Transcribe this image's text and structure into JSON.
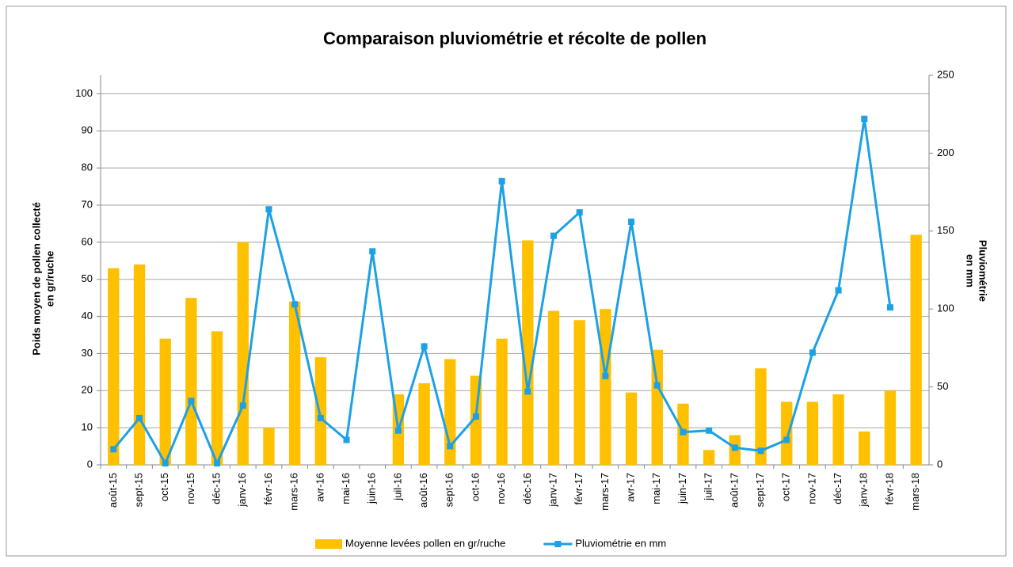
{
  "chart_data": {
    "type": "bar",
    "title": "Comparaison pluviométrie et récolte de pollen",
    "ylabel": [
      "Poids moyen de pollen  collecté",
      "en gr/ruche"
    ],
    "y2label": [
      "Pluviométrie",
      "en mm"
    ],
    "categories": [
      "août-15",
      "sept-15",
      "oct-15",
      "nov-15",
      "déc-15",
      "janv-16",
      "févr-16",
      "mars-16",
      "avr-16",
      "mai-16",
      "juin-16",
      "juil-16",
      "août-16",
      "sept-16",
      "oct-16",
      "nov-16",
      "déc-16",
      "janv-17",
      "févr-17",
      "mars-17",
      "avr-17",
      "mai-17",
      "juin-17",
      "juil-17",
      "août-17",
      "sept-17",
      "oct-17",
      "nov-17",
      "déc-17",
      "janv-18",
      "févr-18",
      "mars-18"
    ],
    "series": [
      {
        "name": "Moyenne levées pollen en gr/ruche",
        "type": "bar",
        "color": "#ffc000",
        "values": [
          53,
          54,
          34,
          45,
          36,
          60,
          10,
          44,
          29,
          null,
          null,
          19,
          22,
          28.5,
          24,
          34,
          60.5,
          41.5,
          39,
          42,
          19.5,
          31,
          16.5,
          4,
          8,
          26,
          17,
          17,
          19,
          9,
          20,
          62
        ]
      },
      {
        "name": "Pluviométrie en mm",
        "type": "line",
        "axis": "y2",
        "color": "#1ca0e6",
        "values": [
          10,
          30,
          1,
          41,
          1,
          38,
          164,
          103,
          30,
          16,
          137,
          22,
          76,
          12,
          31,
          182,
          47,
          147,
          162,
          57,
          156,
          51,
          21,
          22,
          11,
          9,
          16,
          72,
          112,
          222,
          101,
          null
        ]
      }
    ],
    "ylim": [
      0,
      105
    ],
    "yticks": [
      0,
      10,
      20,
      30,
      40,
      50,
      60,
      70,
      80,
      90,
      100
    ],
    "y2lim": [
      0,
      250
    ],
    "y2ticks": [
      0,
      50,
      100,
      150,
      200,
      250
    ],
    "grid": true,
    "legend": "bottom"
  }
}
